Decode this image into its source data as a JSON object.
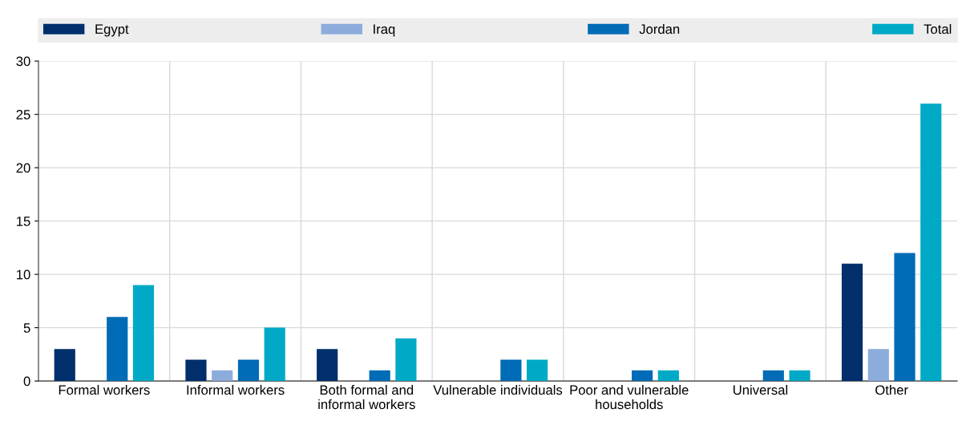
{
  "chart_data": {
    "type": "bar",
    "categories": [
      "Formal workers",
      "Informal workers",
      "Both formal and\ninformal workers",
      "Vulnerable individuals",
      "Poor and vulnerable\nhouseholds",
      "Universal",
      "Other"
    ],
    "series": [
      {
        "name": "Egypt",
        "color": "#002f6c",
        "values": [
          3,
          2,
          3,
          0,
          0,
          0,
          11
        ]
      },
      {
        "name": "Iraq",
        "color": "#8cacdc",
        "values": [
          0,
          1,
          0,
          0,
          0,
          0,
          3
        ]
      },
      {
        "name": "Jordan",
        "color": "#006bb6",
        "values": [
          6,
          2,
          1,
          2,
          1,
          1,
          12
        ]
      },
      {
        "name": "Total",
        "color": "#00aac6",
        "values": [
          9,
          5,
          4,
          2,
          1,
          1,
          26
        ]
      }
    ],
    "ylim": [
      0,
      30
    ],
    "yticks": [
      0,
      5,
      10,
      15,
      20,
      25,
      30
    ],
    "grid": true,
    "legend": "top"
  }
}
